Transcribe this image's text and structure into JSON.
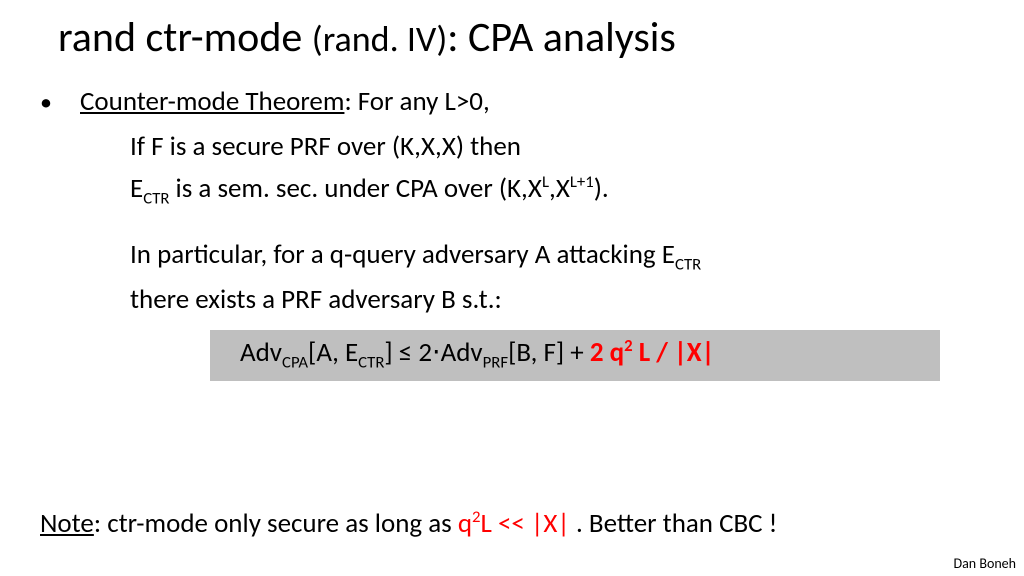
{
  "colors": {
    "background": "#ffffff",
    "text": "#000000",
    "highlight_bg": "#bfbfbf",
    "red": "#ff0000"
  },
  "typography": {
    "base_family": "Calibri",
    "title_size_pt": 42,
    "title_small_size_pt": 36,
    "body_size_pt": 27,
    "author_size_pt": 14
  },
  "title": {
    "part1": "rand ctr-mode ",
    "part2_small": "(rand. IV)",
    "part3": ":   CPA analysis"
  },
  "theorem": {
    "label": "Counter-mode Theorem",
    "intro": ":     For any L>0,",
    "line1_a": "If F is a secure PRF over (K,X,X) then",
    "line2_a": "E",
    "line2_sub": "CTR",
    "line2_b": " is a sem. sec. under CPA over (K,X",
    "line2_sup1": "L",
    "line2_c": ",X",
    "line2_sup2": "L+1",
    "line2_d": ").",
    "line3_a": "In particular,  for a q-query adversary A attacking E",
    "line3_sub": "CTR",
    "line4_a": "there exists a PRF adversary B  s.t.:"
  },
  "formula": {
    "p1": "Adv",
    "p1_sub": "CPA",
    "p2": "[A, E",
    "p2_sub": "CTR",
    "p3": "]  ≤  2⋅Adv",
    "p3_sub": "PRF",
    "p4": "[B, F]  +  ",
    "red_a": "2 q",
    "red_sup": "2",
    "red_b": " L / |X|"
  },
  "note": {
    "label": "Note",
    "a": ":  ctr-mode only secure as long as ",
    "red_a": "q",
    "red_sup": "2",
    "red_b": "L << |X|",
    "b": " .    Better than CBC !"
  },
  "author": "Dan Boneh"
}
